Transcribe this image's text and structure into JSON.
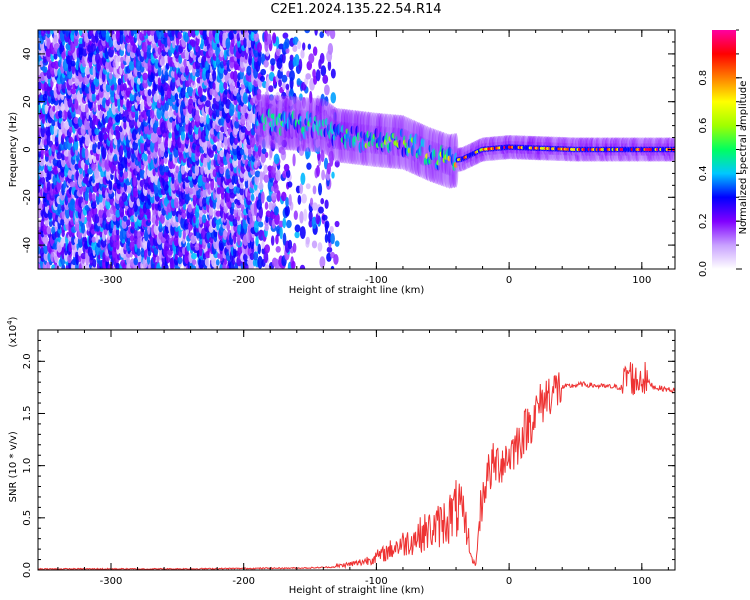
{
  "title": "C2E1.2024.135.22.54.R14",
  "chart_data": [
    {
      "type": "heatmap",
      "xlabel": "Height of straight line (km)",
      "ylabel": "Frequency (Hz)",
      "xlim": [
        -355,
        125
      ],
      "ylim": [
        -50,
        50
      ],
      "xticks": [
        -300,
        -200,
        -100,
        0,
        100
      ],
      "yticks": [
        -40,
        -20,
        0,
        20,
        40
      ],
      "colorbar": {
        "label": "Normalized spectral amplitude",
        "range": [
          0,
          1
        ],
        "ticks": [
          0.0,
          0.2,
          0.4,
          0.6,
          0.8
        ],
        "colors": [
          "#ffffff",
          "#c8a0ff",
          "#8000ff",
          "#0000ff",
          "#00c8ff",
          "#00ff60",
          "#a0ff00",
          "#ffff00",
          "#ff8000",
          "#ff0000",
          "#ff00a0"
        ]
      },
      "features": {
        "noise_region": {
          "x_range": [
            -355,
            -130
          ],
          "amplitude": [
            0.05,
            0.4
          ],
          "freq_range": [
            -50,
            50
          ]
        },
        "signal_track": [
          {
            "x": -190,
            "freq": 12
          },
          {
            "x": -140,
            "freq": 10
          },
          {
            "x": -130,
            "freq": 6
          },
          {
            "x": -100,
            "freq": 4
          },
          {
            "x": -80,
            "freq": 3
          },
          {
            "x": -60,
            "freq": -2
          },
          {
            "x": -45,
            "freq": -5
          },
          {
            "x": -35,
            "freq": -4
          },
          {
            "x": -20,
            "freq": 0
          },
          {
            "x": 0,
            "freq": 1
          },
          {
            "x": 50,
            "freq": 0
          },
          {
            "x": 125,
            "freq": 0
          }
        ],
        "track_amplitude": [
          {
            "x": -190,
            "value": 0.5
          },
          {
            "x": -130,
            "value": 0.55
          },
          {
            "x": -90,
            "value": 0.6
          },
          {
            "x": -50,
            "value": 0.7
          },
          {
            "x": -30,
            "value": 0.85
          },
          {
            "x": 0,
            "value": 0.9
          },
          {
            "x": 125,
            "value": 0.92
          }
        ]
      }
    },
    {
      "type": "line",
      "xlabel": "Height of straight line (km)",
      "ylabel": "SNR (10 * v/v)",
      "yscale_label": "(x10^4)",
      "multiplier_base": "(x10",
      "multiplier_exp": "4",
      "multiplier_close": ")",
      "xlim": [
        -355,
        125
      ],
      "ylim": [
        0,
        2.3
      ],
      "xticks": [
        -300,
        -200,
        -100,
        0,
        100
      ],
      "yticks": [
        0.0,
        0.5,
        1.0,
        1.5,
        2.0
      ],
      "ytick_labels": [
        "0.0",
        "0.5",
        "1.0",
        "1.5",
        "2.0"
      ],
      "series": [
        {
          "color": "#ee3333",
          "x": [
            -355,
            -300,
            -250,
            -200,
            -150,
            -130,
            -115,
            -105,
            -95,
            -85,
            -75,
            -65,
            -55,
            -45,
            -38,
            -32,
            -28,
            -25,
            -22,
            -18,
            -12,
            -5,
            0,
            8,
            15,
            22,
            30,
            40,
            55,
            70,
            85,
            90,
            95,
            100,
            110,
            125
          ],
          "y": [
            0.01,
            0.01,
            0.01,
            0.015,
            0.02,
            0.03,
            0.05,
            0.08,
            0.12,
            0.18,
            0.22,
            0.28,
            0.32,
            0.4,
            0.48,
            0.3,
            0.1,
            0.05,
            0.55,
            0.85,
            1.0,
            1.05,
            1.1,
            1.25,
            1.4,
            1.55,
            1.7,
            1.75,
            1.78,
            1.76,
            1.75,
            1.9,
            1.8,
            1.85,
            1.75,
            1.72
          ]
        }
      ]
    }
  ]
}
